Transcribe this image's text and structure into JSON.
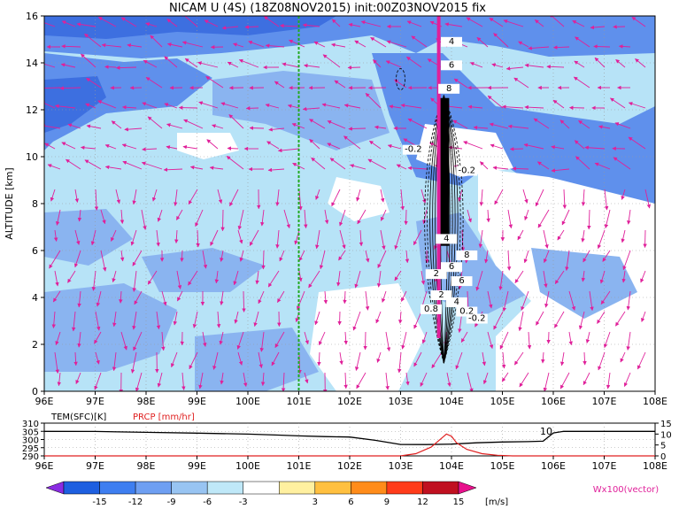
{
  "chart_data": [
    {
      "type": "heatmap",
      "title": "NICAM U (4S)  (18Z08NOV2015)  init:00Z03NOV2015  fix",
      "ylabel": "ALTITUDE [km]",
      "xlabel": "",
      "x_ticks": [
        "96E",
        "97E",
        "98E",
        "99E",
        "100E",
        "101E",
        "102E",
        "103E",
        "104E",
        "105E",
        "106E",
        "107E",
        "108E"
      ],
      "xlim": [
        96,
        108
      ],
      "y_ticks": [
        "0",
        "2",
        "4",
        "6",
        "8",
        "10",
        "12",
        "14",
        "16"
      ],
      "ylim": [
        0,
        16
      ],
      "grid": true,
      "marker_line_lon": 101,
      "contour_labels": [
        "-0.2",
        "-0.2",
        "4",
        "6",
        "8",
        "2",
        "6",
        "2",
        "4",
        "0.8",
        "0.2",
        "-0.2",
        "4",
        "6",
        "8"
      ],
      "vector_label": "Wx100(vector)",
      "colorbar": {
        "ticks": [
          "-15",
          "-12",
          "-9",
          "-6",
          "-3",
          "3",
          "6",
          "9",
          "12",
          "15"
        ],
        "unit": "[m/s]",
        "colors": [
          "#8a2be2",
          "#1e5fe0",
          "#3e7ef0",
          "#6e9ff2",
          "#98c4f2",
          "#bfe8f8",
          "#ffffff",
          "#fff0a0",
          "#ffc040",
          "#ff8c1a",
          "#ff3c1a",
          "#c01020",
          "#e8108c"
        ]
      },
      "field_colors": {
        "strong_neg": "#3d6fe0",
        "neg": "#5f90ec",
        "mid_neg": "#8ab4f0",
        "weak_neg": "#b7e3f7",
        "near_zero": "#ffffff",
        "vector": "#e0209a",
        "contour": "#000000"
      }
    },
    {
      "type": "line",
      "x_ticks": [
        "96E",
        "97E",
        "98E",
        "99E",
        "100E",
        "101E",
        "102E",
        "103E",
        "104E",
        "105E",
        "106E",
        "107E",
        "108E"
      ],
      "xlim": [
        96,
        108
      ],
      "grid": true,
      "series": [
        {
          "name": "TEM(SFC)[K]",
          "color": "#000000",
          "axis": "left",
          "ylim": [
            290,
            310
          ],
          "y_ticks": [
            "290",
            "295",
            "300",
            "305",
            "310"
          ],
          "x": [
            96,
            97,
            98,
            99,
            100,
            100.6,
            101,
            101.5,
            102,
            102.5,
            103,
            103.5,
            104,
            104.5,
            105,
            105.5,
            105.8,
            106,
            106.2,
            107,
            108
          ],
          "values": [
            305,
            304.9,
            304.4,
            303.9,
            303.3,
            302.7,
            302.2,
            301.8,
            301.5,
            299.5,
            297.0,
            296.9,
            297.2,
            298.0,
            298.5,
            298.7,
            299.0,
            304.0,
            305.0,
            305.0,
            305.0
          ]
        },
        {
          "name": "PRCP [mm/hr]",
          "color": "#e02020",
          "axis": "right",
          "ylim": [
            0,
            15
          ],
          "y_ticks": [
            "0",
            "5",
            "10",
            "15"
          ],
          "x": [
            96,
            103,
            103.3,
            103.6,
            103.8,
            103.9,
            104.0,
            104.1,
            104.3,
            104.6,
            104.9,
            105.2,
            108
          ],
          "values": [
            0,
            0,
            1,
            4,
            8,
            10,
            9,
            6,
            3,
            1,
            0.3,
            0,
            0
          ]
        }
      ],
      "annotation": "10"
    }
  ]
}
